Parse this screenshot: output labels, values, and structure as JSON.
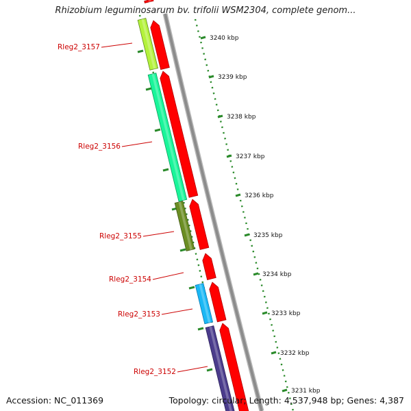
{
  "title": "Rhizobium leguminosarum bv. trifolii WSM2304, complete genom...",
  "footer": {
    "accession": "Accession: NC_011369",
    "summary": "Topology: circular; Length: 4,537,948 bp; Genes: 4,387"
  },
  "colors": {
    "backbone": "#8c8c8c",
    "ticks": "#2a8a2a",
    "cds": "#ff0000",
    "label": "#cc0000"
  },
  "genes": [
    {
      "name": "Rleg2_3157",
      "color": "#b4f23c",
      "dark": "#5a8a18"
    },
    {
      "name": "Rleg2_3156",
      "color": "#19f59a",
      "dark": "#0a9c5a"
    },
    {
      "name": "Rleg2_3155",
      "color": "#6b8e23",
      "dark": "#3e5512"
    },
    {
      "name": "Rleg2_3154",
      "color": "#ff0000",
      "dark": "#aa0000"
    },
    {
      "name": "Rleg2_3153",
      "color": "#1ab8f5",
      "dark": "#0a78b0"
    },
    {
      "name": "Rleg2_3152",
      "color": "#4b3c8c",
      "dark": "#2a1f5a"
    }
  ],
  "scale_labels": [
    "3240 kbp",
    "3239 kbp",
    "3238 kbp",
    "3237 kbp",
    "3236 kbp",
    "3235 kbp",
    "3234 kbp",
    "3233 kbp",
    "3232 kbp",
    "3231 kbp"
  ]
}
